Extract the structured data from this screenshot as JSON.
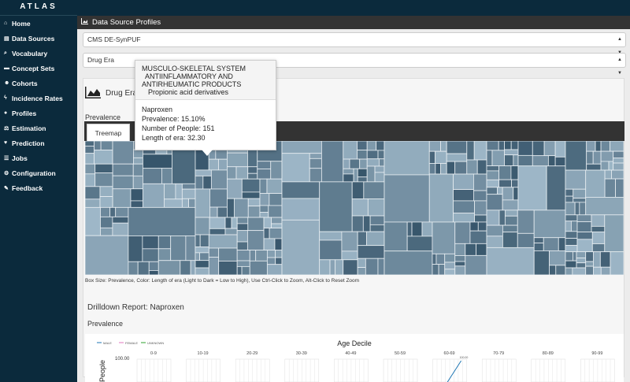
{
  "app": {
    "logo": "ATLAS"
  },
  "sidebar": {
    "items": [
      {
        "label": "Home",
        "icon": "home-icon",
        "glyph": "⌂"
      },
      {
        "label": "Data Sources",
        "icon": "database-icon",
        "glyph": "▤"
      },
      {
        "label": "Vocabulary",
        "icon": "search-icon",
        "glyph": "⌕"
      },
      {
        "label": "Concept Sets",
        "icon": "cart-icon",
        "glyph": "▬"
      },
      {
        "label": "Cohorts",
        "icon": "users-icon",
        "glyph": "☻"
      },
      {
        "label": "Incidence Rates",
        "icon": "bolt-icon",
        "glyph": "ϟ"
      },
      {
        "label": "Profiles",
        "icon": "user-icon",
        "glyph": "●"
      },
      {
        "label": "Estimation",
        "icon": "balance-icon",
        "glyph": "⚖"
      },
      {
        "label": "Prediction",
        "icon": "heartbeat-icon",
        "glyph": "♥"
      },
      {
        "label": "Jobs",
        "icon": "list-icon",
        "glyph": "☰"
      },
      {
        "label": "Configuration",
        "icon": "cogs-icon",
        "glyph": "⚙"
      },
      {
        "label": "Feedback",
        "icon": "comment-icon",
        "glyph": "✎"
      }
    ]
  },
  "header": {
    "title": "Data Source Profiles",
    "icon": "area-chart-icon"
  },
  "source_select": {
    "value": "CMS DE-SynPUF"
  },
  "report_select": {
    "value": "Drug Era"
  },
  "report": {
    "title": "Drug Era",
    "prevalence_label": "Prevalence",
    "tab_label": "Treemap"
  },
  "treemap": {
    "caption": "Box Size: Prevalence, Color: Length of era (Light to Dark = Low to High), Use Ctrl-Click to Zoom, Alt-Click to Reset Zoom",
    "colors": {
      "light": "#c4dbea",
      "dark": "#2e4d63"
    }
  },
  "tooltip": {
    "line1": "MUSCULO-SKELETAL SYSTEM",
    "line2": "ANTIINFLAMMATORY AND",
    "line3": "ANTIRHEUMATIC PRODUCTS",
    "line4": "Propionic acid derivatives",
    "drug": "Naproxen",
    "prevalence": "Prevalence: 15.10%",
    "people": "Number of People: 151",
    "length": "Length of era: 32.30"
  },
  "drilldown": {
    "title": "Drilldown Report: Naproxen",
    "prevalence_label": "Prevalence"
  },
  "chart_data": {
    "type": "line",
    "title": "Age Decile",
    "ylabel": "People",
    "legend": [
      "MALE",
      "FEMALE",
      "UNKNOWN"
    ],
    "legend_colors": [
      "#1f77b4",
      "#e377c2",
      "#2ca02c"
    ],
    "legend_placement": "top-left",
    "y_tick": "100.00",
    "panels": [
      "0-9",
      "10-19",
      "20-29",
      "30-39",
      "40-49",
      "50-59",
      "60-69",
      "70-79",
      "80-89",
      "90-99"
    ],
    "annotation": "100.00"
  }
}
